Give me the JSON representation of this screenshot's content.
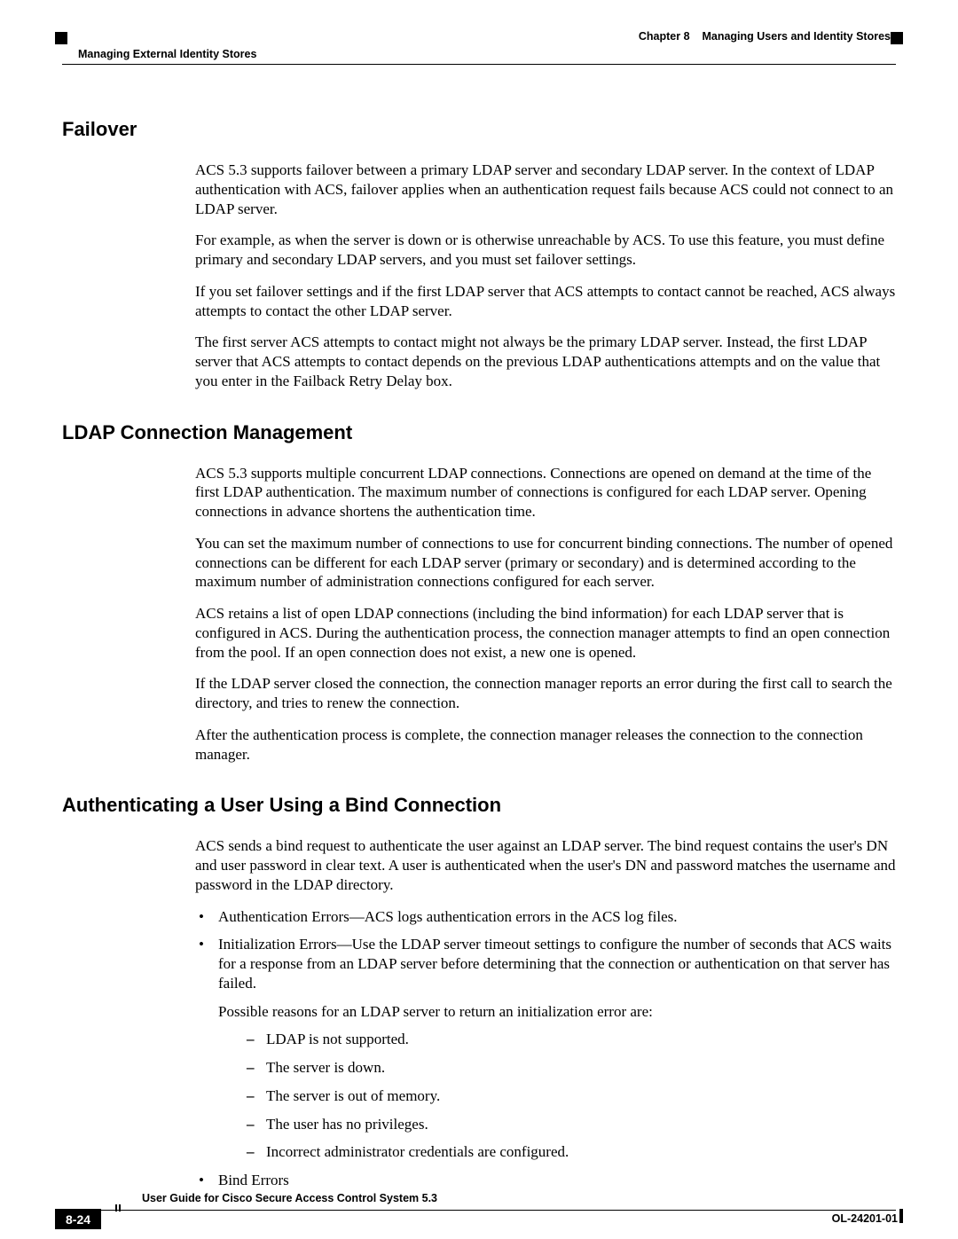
{
  "header": {
    "chapter_label": "Chapter 8",
    "chapter_title": "Managing Users and Identity Stores",
    "section_title": "Managing External Identity Stores"
  },
  "sections": {
    "failover": {
      "heading": "Failover",
      "p1": "ACS 5.3 supports failover between a primary LDAP server and secondary LDAP server. In the context of LDAP authentication with ACS, failover applies when an authentication request fails because ACS could not connect to an LDAP server.",
      "p2": "For example, as when the server is down or is otherwise unreachable by ACS. To use this feature, you must define primary and secondary LDAP servers, and you must set failover settings.",
      "p3": "If you set failover settings and if the first LDAP server that ACS attempts to contact cannot be reached, ACS always attempts to contact the other LDAP server.",
      "p4": "The first server ACS attempts to contact might not always be the primary LDAP server. Instead, the first LDAP server that ACS attempts to contact depends on the previous LDAP authentications attempts and on the value that you enter in the Failback Retry Delay box."
    },
    "ldap_conn": {
      "heading": "LDAP Connection Management",
      "p1": "ACS 5.3 supports multiple concurrent LDAP connections. Connections are opened on demand at the time of the first LDAP authentication. The maximum number of connections is configured for each LDAP server. Opening connections in advance shortens the authentication time.",
      "p2": "You can set the maximum number of connections to use for concurrent binding connections. The number of opened connections can be different for each LDAP server (primary or secondary) and is determined according to the maximum number of administration connections configured for each server.",
      "p3": "ACS retains a list of open LDAP connections (including the bind information) for each LDAP server that is configured in ACS. During the authentication process, the connection manager attempts to find an open connection from the pool. If an open connection does not exist, a new one is opened.",
      "p4": "If the LDAP server closed the connection, the connection manager reports an error during the first call to search the directory, and tries to renew the connection.",
      "p5": "After the authentication process is complete, the connection manager releases the connection to the connection manager."
    },
    "auth_bind": {
      "heading": "Authenticating a User Using a Bind Connection",
      "p1": "ACS sends a bind request to authenticate the user against an LDAP server. The bind request contains the user's DN and user password in clear text. A user is authenticated when the user's DN and password matches the username and password in the LDAP directory.",
      "b1": "Authentication Errors—ACS logs authentication errors in the ACS log files.",
      "b2": "Initialization Errors—Use the LDAP server timeout settings to configure the number of seconds that ACS waits for a response from an LDAP server before determining that the connection or authentication on that server has failed.",
      "b2_intro": "Possible reasons for an LDAP server to return an initialization error are:",
      "d1": "LDAP is not supported.",
      "d2": "The server is down.",
      "d3": "The server is out of memory.",
      "d4": "The user has no privileges.",
      "d5": "Incorrect administrator credentials are configured.",
      "b3": "Bind Errors"
    }
  },
  "footer": {
    "guide_title": "User Guide for Cisco Secure Access Control System 5.3",
    "page_num": "8-24",
    "doc_id": "OL-24201-01"
  }
}
